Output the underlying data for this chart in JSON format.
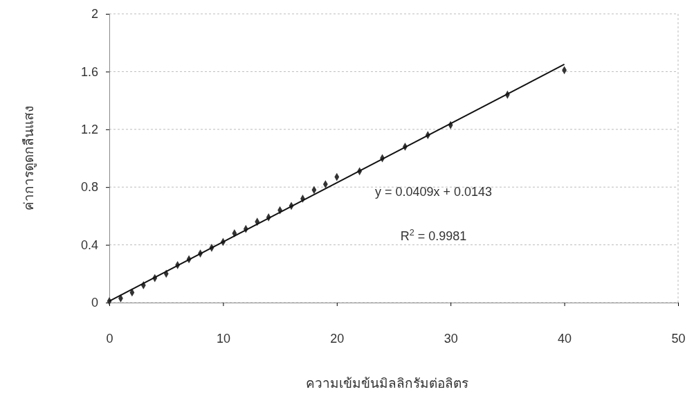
{
  "chart_data": {
    "type": "scatter",
    "xlabel": "ความเข้มข้นมิลลิกรัมต่อลิตร",
    "ylabel": "ค่าการดูดกลืนแสง",
    "xlim": [
      0,
      50
    ],
    "xticks": [
      0,
      10,
      20,
      30,
      40,
      50
    ],
    "ylim": [
      0,
      2
    ],
    "yticks": [
      0,
      0.4,
      0.8,
      1.2,
      1.6,
      2
    ],
    "grid": "y",
    "series": [
      {
        "marker": "diamond",
        "color": "#333333",
        "x": [
          0,
          1,
          2,
          3,
          4,
          5,
          6,
          7,
          8,
          9,
          10,
          11,
          12,
          13,
          14,
          15,
          16,
          17,
          18,
          19,
          20,
          22,
          24,
          26,
          28,
          30,
          35,
          40
        ],
        "values": [
          0.01,
          0.03,
          0.07,
          0.12,
          0.17,
          0.2,
          0.26,
          0.3,
          0.34,
          0.38,
          0.42,
          0.48,
          0.51,
          0.56,
          0.59,
          0.64,
          0.67,
          0.72,
          0.78,
          0.82,
          0.87,
          0.91,
          1.0,
          1.08,
          1.16,
          1.23,
          1.44,
          1.61
        ]
      },
      {
        "type": "line",
        "color": "#111111",
        "x": [
          0,
          40
        ],
        "values": [
          0.01,
          1.65
        ],
        "line_style": "solid",
        "marker": "none"
      }
    ],
    "annotations": [
      "y = 0.0409x + 0.0143",
      "R$^{2}$ = 0.9981"
    ]
  }
}
